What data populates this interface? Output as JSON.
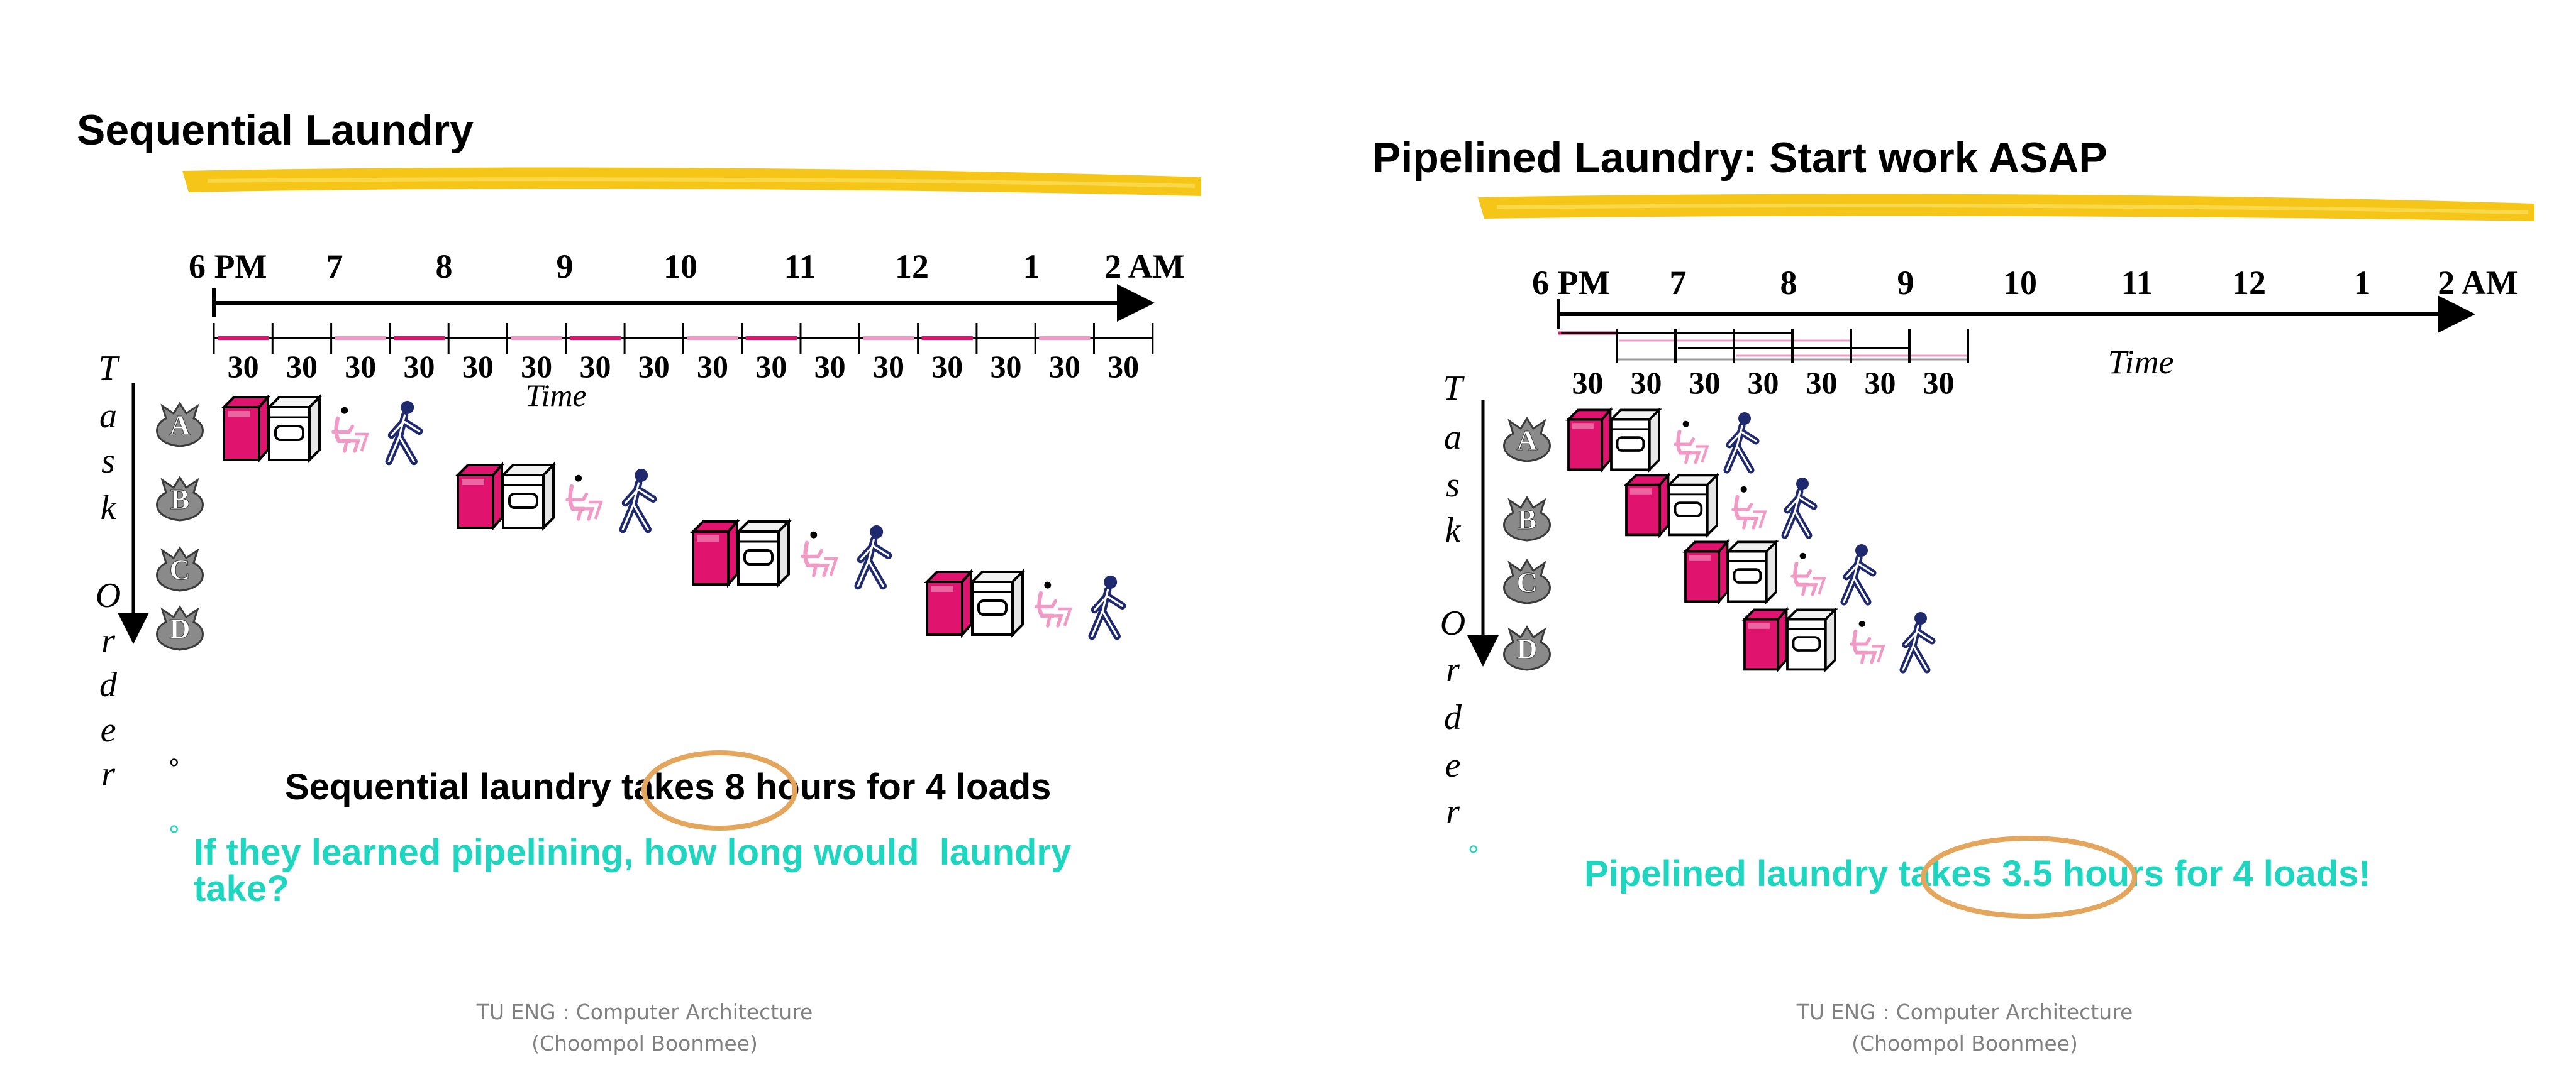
{
  "colors": {
    "highlight": "#f5c518",
    "accent_text": "#1ed6bf",
    "circle": "#e3a65c",
    "washer": "#e0136f",
    "dryer": "#ffffff",
    "folder": "#f29ac6",
    "walker": "#1f2a6e",
    "bag": "#8a8a8a"
  },
  "icons": [
    "laundry-bag-icon",
    "washer-icon",
    "dryer-icon",
    "folder-icon",
    "walker-icon"
  ],
  "left": {
    "title": "Sequential Laundry",
    "time_ticks": [
      "6 PM",
      "7",
      "8",
      "9",
      "10",
      "11",
      "12",
      "1",
      "2 AM"
    ],
    "slots": [
      "30",
      "30",
      "30",
      "30",
      "30",
      "30",
      "30",
      "30",
      "30",
      "30",
      "30",
      "30",
      "30",
      "30",
      "30",
      "30"
    ],
    "time_label": "Time",
    "task_letters": [
      "T",
      "a",
      "s",
      "k",
      "",
      "O",
      "r",
      "d",
      "e",
      "r"
    ],
    "loads": [
      "A",
      "B",
      "C",
      "D"
    ],
    "bullet1_pre": "Sequential laundry takes ",
    "bullet1_circled": "8 hours",
    "bullet1_post": " for 4 loads",
    "bullet2_line1": "If they learned pipelining, how long would  laundry",
    "bullet2_line2": "take?",
    "footer_line1": "TU ENG : Computer Architecture",
    "footer_line2": "(Choompol Boonmee)"
  },
  "right": {
    "title": "Pipelined Laundry: Start work ASAP",
    "time_ticks": [
      "6 PM",
      "7",
      "8",
      "9",
      "10",
      "11",
      "12",
      "1",
      "2 AM"
    ],
    "slots": [
      "30",
      "30",
      "30",
      "30",
      "30",
      "30",
      "30"
    ],
    "time_label": "Time",
    "task_letters": [
      "T",
      "a",
      "s",
      "k",
      "",
      "O",
      "r",
      "d",
      "e",
      "r"
    ],
    "loads": [
      "A",
      "B",
      "C",
      "D"
    ],
    "bullet_pre": "Pipelined laundry takes ",
    "bullet_circled": "3.5 hours",
    "bullet_post": " for 4 loads!",
    "footer_line1": "TU ENG : Computer Architecture",
    "footer_line2": "(Choompol Boonmee)"
  }
}
